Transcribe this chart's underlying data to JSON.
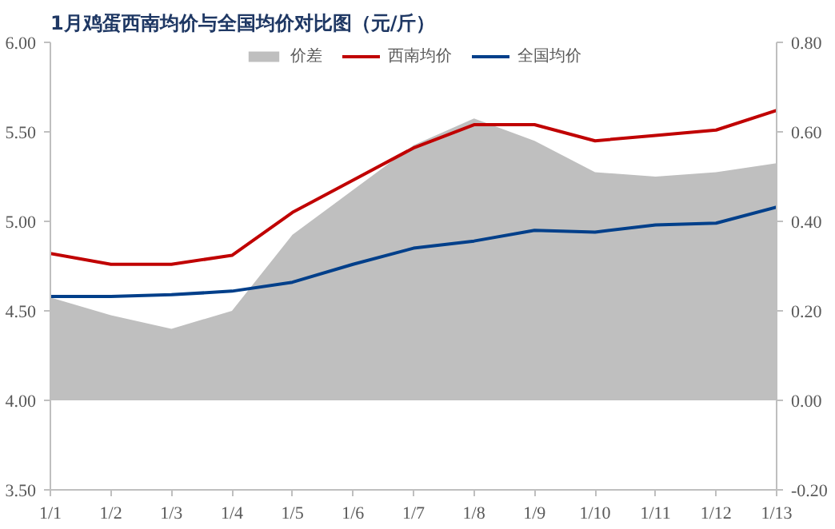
{
  "chart_data": {
    "type": "line",
    "title": "1月鸡蛋西南均价与全国均价对比图（元/斤）",
    "categories": [
      "1/1",
      "1/2",
      "1/3",
      "1/4",
      "1/5",
      "1/6",
      "1/7",
      "1/8",
      "1/9",
      "1/10",
      "1/11",
      "1/12",
      "1/13"
    ],
    "series": [
      {
        "name": "价差",
        "type": "area",
        "axis": "y2",
        "color": "#bfbfbf",
        "values": [
          0.23,
          0.19,
          0.16,
          0.2,
          0.37,
          0.47,
          0.57,
          0.63,
          0.58,
          0.51,
          0.5,
          0.51,
          0.53
        ]
      },
      {
        "name": "西南均价",
        "color": "#c00000",
        "values": [
          4.82,
          4.76,
          4.76,
          4.81,
          5.05,
          5.23,
          5.41,
          5.54,
          5.54,
          5.45,
          5.48,
          5.51,
          5.62
        ]
      },
      {
        "name": "全国均价",
        "color": "#003f8a",
        "values": [
          4.58,
          4.58,
          4.59,
          4.61,
          4.66,
          4.76,
          4.85,
          4.89,
          4.95,
          4.94,
          4.98,
          4.99,
          5.08
        ]
      }
    ],
    "ylim": [
      3.5,
      6.0
    ],
    "yticks": [
      {
        "value": 3.5,
        "label": "3.50"
      },
      {
        "value": 4.0,
        "label": "4.00"
      },
      {
        "value": 4.5,
        "label": "4.50"
      },
      {
        "value": 5.0,
        "label": "5.00"
      },
      {
        "value": 5.5,
        "label": "5.50"
      },
      {
        "value": 6.0,
        "label": "6.00"
      }
    ],
    "y2lim": [
      -0.2,
      0.8
    ],
    "y2ticks": [
      {
        "value": -0.2,
        "label": "-0.20"
      },
      {
        "value": 0,
        "label": "0.00"
      },
      {
        "value": 0.2,
        "label": "0.20"
      },
      {
        "value": 0.4,
        "label": "0.40"
      },
      {
        "value": 0.6,
        "label": "0.60"
      },
      {
        "value": 0.8,
        "label": "0.80"
      }
    ],
    "grid": false,
    "legend": "top",
    "line_style": "solid"
  }
}
